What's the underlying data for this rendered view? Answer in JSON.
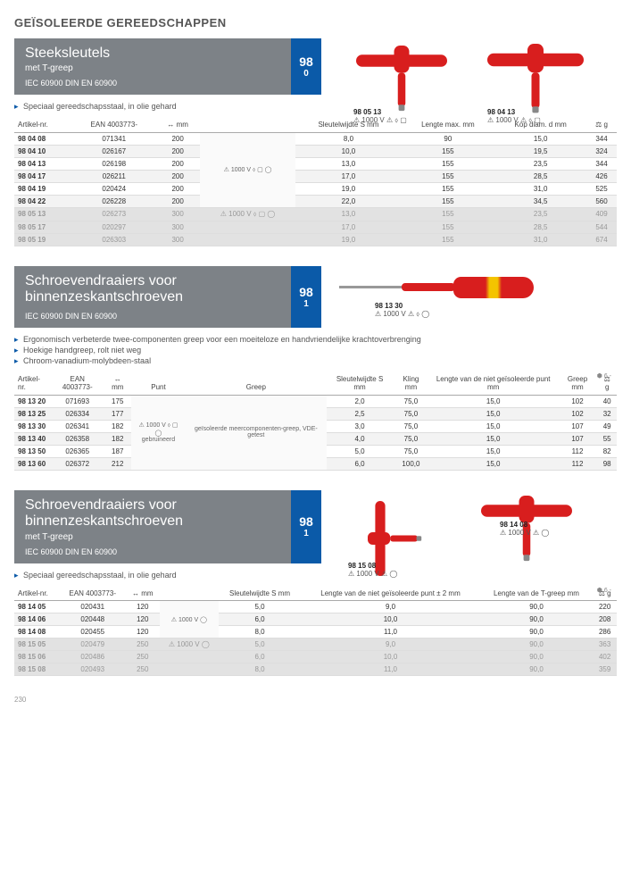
{
  "page_title": "GEÏSOLEERDE GEREEDSCHAPPEN",
  "page_number": "230",
  "sections": [
    {
      "title": "Steeksleutels",
      "subtitle": "met T-greep",
      "standards": "IEC 60900   DIN EN 60900",
      "code_top": "98",
      "code_bot": "0",
      "bullets": [
        "Speciaal gereedschapsstaal, in olie gehard"
      ],
      "img_labels": [
        {
          "art": "98 05 13",
          "volt": "1000 V",
          "icons": "⚠ ⬨ ▢"
        },
        {
          "art": "98 04 13",
          "volt": "1000 V",
          "icons": "⚠ ⬨ ▢"
        }
      ],
      "columns": [
        "Artikel-nr.",
        "EAN 4003773-",
        "↔ mm",
        "",
        "Sleutelwijdte S mm",
        "Lengte max. mm",
        "Kop diam. d mm",
        "⚖ g"
      ],
      "merge_cell": "⚠ 1000 V ⬨ ▢ ◯",
      "rows": [
        [
          "98 04 08",
          "071341",
          "200",
          "",
          "8,0",
          "90",
          "15,0",
          "344"
        ],
        [
          "98 04 10",
          "026167",
          "200",
          "",
          "10,0",
          "155",
          "19,5",
          "324"
        ],
        [
          "98 04 13",
          "026198",
          "200",
          "",
          "13,0",
          "155",
          "23,5",
          "344"
        ],
        [
          "98 04 17",
          "026211",
          "200",
          "",
          "17,0",
          "155",
          "28,5",
          "426"
        ],
        [
          "98 04 19",
          "020424",
          "200",
          "",
          "19,0",
          "155",
          "31,0",
          "525"
        ],
        [
          "98 04 22",
          "026228",
          "200",
          "",
          "22,0",
          "155",
          "34,5",
          "560"
        ]
      ],
      "dark_rows": [
        [
          "98 05 13",
          "026273",
          "300",
          "⚠ 1000 V ⬨ ▢ ◯",
          "13,0",
          "155",
          "23,5",
          "409"
        ],
        [
          "98 05 17",
          "020297",
          "300",
          "",
          "17,0",
          "155",
          "28,5",
          "544"
        ],
        [
          "98 05 19",
          "026303",
          "300",
          "",
          "19,0",
          "155",
          "31,0",
          "674"
        ]
      ]
    },
    {
      "title": "Schroevendraaiers voor binnenzeskantschroeven",
      "subtitle": "",
      "standards": "IEC 60900   DIN EN 60900",
      "code_top": "98",
      "code_bot": "1",
      "bullets": [
        "Ergonomisch verbeterde twee-componenten greep voor een moeiteloze en handvriendelijke krachtoverbrenging",
        "Hoekige handgreep, rolt niet weg",
        "Chroom-vanadium-molybdeen-staal"
      ],
      "img_labels": [
        {
          "art": "98 13 30",
          "volt": "1000 V",
          "icons": "⚠ ⬨ ◯"
        }
      ],
      "hex_ind": "⬢ 6 -",
      "columns": [
        "Artikel-nr.",
        "EAN 4003773-",
        "↔ mm",
        "Punt",
        "Greep",
        "Sleutelwijdte S mm",
        "Kling mm",
        "Lengte van de niet geïsoleerde punt mm",
        "Greep mm",
        "⚖ g"
      ],
      "merge_cell": "⚠ 1000 V ⬨ ▢ ◯",
      "merge_cell2": "gebruineerd",
      "merge_cell3": "geïsoleerde meercomponenten-greep, VDE-getest",
      "rows": [
        [
          "98 13 20",
          "071693",
          "175",
          "",
          "",
          "2,0",
          "75,0",
          "15,0",
          "102",
          "40"
        ],
        [
          "98 13 25",
          "026334",
          "177",
          "",
          "",
          "2,5",
          "75,0",
          "15,0",
          "102",
          "32"
        ],
        [
          "98 13 30",
          "026341",
          "182",
          "",
          "",
          "3,0",
          "75,0",
          "15,0",
          "107",
          "49"
        ],
        [
          "98 13 40",
          "026358",
          "182",
          "",
          "",
          "4,0",
          "75,0",
          "15,0",
          "107",
          "55"
        ],
        [
          "98 13 50",
          "026365",
          "187",
          "",
          "",
          "5,0",
          "75,0",
          "15,0",
          "112",
          "82"
        ],
        [
          "98 13 60",
          "026372",
          "212",
          "",
          "",
          "6,0",
          "100,0",
          "15,0",
          "112",
          "98"
        ]
      ]
    },
    {
      "title": "Schroevendraaiers voor binnenzeskantschroeven",
      "subtitle": "met T-greep",
      "standards": "IEC 60900   DIN EN 60900",
      "code_top": "98",
      "code_bot": "1",
      "bullets": [
        "Speciaal gereedschapsstaal, in olie gehard"
      ],
      "img_labels": [
        {
          "art": "98 15 08",
          "volt": "1000 V",
          "icons": "⚠ ◯"
        },
        {
          "art": "98 14 08",
          "volt": "1000 V",
          "icons": "⚠ ◯"
        }
      ],
      "hex_ind": "⬢ 6 -",
      "columns": [
        "Artikel-nr.",
        "EAN 4003773-",
        "↔ mm",
        "",
        "Sleutelwijdte S mm",
        "Lengte van de niet geïsoleerde punt ± 2 mm",
        "Lengte van de T-greep mm",
        "⚖ g"
      ],
      "merge_cell": "⚠ 1000 V ◯",
      "rows": [
        [
          "98 14 05",
          "020431",
          "120",
          "",
          "5,0",
          "9,0",
          "90,0",
          "220"
        ],
        [
          "98 14 06",
          "020448",
          "120",
          "",
          "6,0",
          "10,0",
          "90,0",
          "208"
        ],
        [
          "98 14 08",
          "020455",
          "120",
          "",
          "8,0",
          "11,0",
          "90,0",
          "286"
        ]
      ],
      "dark_rows": [
        [
          "98 15 05",
          "020479",
          "250",
          "⚠ 1000 V ◯",
          "5,0",
          "9,0",
          "90,0",
          "363"
        ],
        [
          "98 15 06",
          "020486",
          "250",
          "",
          "6,0",
          "10,0",
          "90,0",
          "402"
        ],
        [
          "98 15 08",
          "020493",
          "250",
          "",
          "8,0",
          "11,0",
          "90,0",
          "359"
        ]
      ]
    }
  ]
}
